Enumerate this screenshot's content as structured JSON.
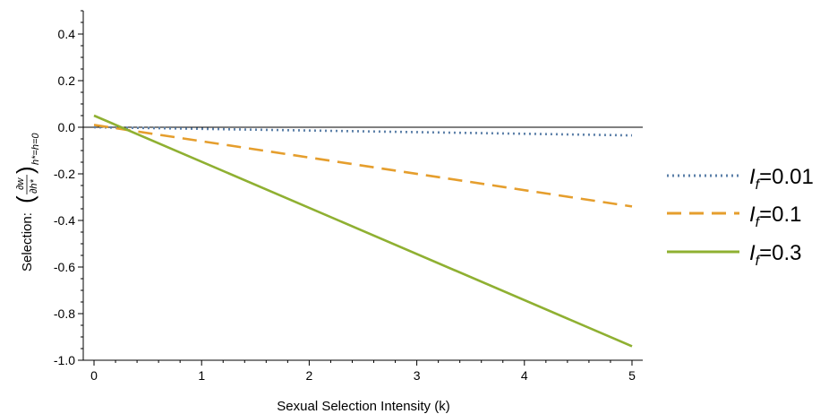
{
  "chart_data": {
    "type": "line",
    "xlabel": "Sexual Selection Intensity (k)",
    "ylabel": "Selection:",
    "ylabel_math": {
      "numerator": "∂w",
      "denominator": "∂h*",
      "subscript": "h*=h=0"
    },
    "xlim": [
      -0.1,
      5.1
    ],
    "ylim": [
      -1.0,
      0.5
    ],
    "x_ticks": [
      {
        "value": 0,
        "label": "0"
      },
      {
        "value": 1,
        "label": "1"
      },
      {
        "value": 2,
        "label": "2"
      },
      {
        "value": 3,
        "label": "3"
      },
      {
        "value": 4,
        "label": "4"
      },
      {
        "value": 5,
        "label": "5"
      }
    ],
    "y_ticks": [
      {
        "value": 0.4,
        "label": "0.4"
      },
      {
        "value": 0.2,
        "label": "0.2"
      },
      {
        "value": 0.0,
        "label": "0.0"
      },
      {
        "value": -0.2,
        "label": "-0.2"
      },
      {
        "value": -0.4,
        "label": "-0.4"
      },
      {
        "value": -0.6,
        "label": "-0.6"
      },
      {
        "value": -0.8,
        "label": "-0.8"
      },
      {
        "value": -1.0,
        "label": "-1.0"
      }
    ],
    "grid": false,
    "legend_position": "right",
    "series": [
      {
        "name": "=0.01",
        "symbol": "I",
        "subscript": "f",
        "color": "#5b7fa8",
        "style": "dotted",
        "x": [
          0,
          5
        ],
        "y": [
          0.0,
          -0.035
        ]
      },
      {
        "name": "=0.1",
        "symbol": "I",
        "subscript": "f",
        "color": "#e59e2d",
        "style": "dashed",
        "x": [
          0,
          5
        ],
        "y": [
          0.01,
          -0.34
        ]
      },
      {
        "name": "=0.3",
        "symbol": "I",
        "subscript": "f",
        "color": "#8fb032",
        "style": "solid",
        "x": [
          0,
          5
        ],
        "y": [
          0.05,
          -0.94
        ]
      }
    ]
  }
}
